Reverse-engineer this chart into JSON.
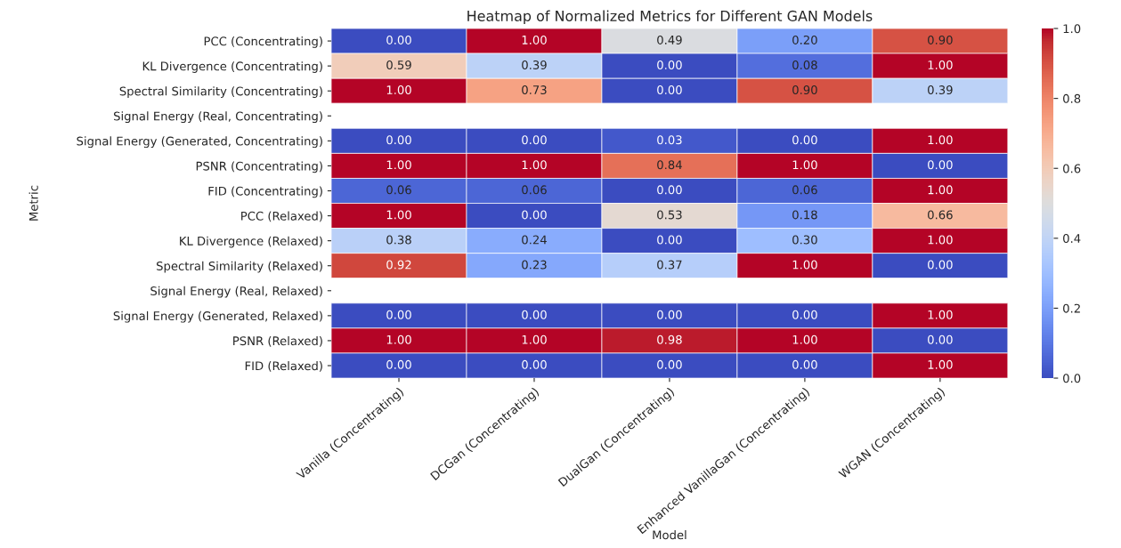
{
  "chart_data": {
    "type": "heatmap",
    "title": "Heatmap of Normalized Metrics for Different GAN Models",
    "xlabel": "Model",
    "ylabel": "Metric",
    "categories": [
      "Vanilla (Concentrating)",
      "DCGan (Concentrating)",
      "DualGan (Concentrating)",
      "Enhanced VanillaGan (Concentrating)",
      "WGAN (Concentrating)"
    ],
    "y_categories": [
      "PCC (Concentrating)",
      "KL Divergence (Concentrating)",
      "Spectral Similarity (Concentrating)",
      "Signal Energy (Real, Concentrating)",
      "Signal Energy (Generated, Concentrating)",
      "PSNR (Concentrating)",
      "FID (Concentrating)",
      "PCC (Relaxed)",
      "KL Divergence (Relaxed)",
      "Spectral Similarity (Relaxed)",
      "Signal Energy (Real, Relaxed)",
      "Signal Energy (Generated, Relaxed)",
      "PSNR (Relaxed)",
      "FID (Relaxed)"
    ],
    "cells": [
      [
        0.0,
        1.0,
        0.49,
        0.2,
        0.9
      ],
      [
        0.59,
        0.39,
        0.0,
        0.08,
        1.0
      ],
      [
        1.0,
        0.73,
        0.0,
        0.9,
        0.39
      ],
      [
        null,
        null,
        null,
        null,
        null
      ],
      [
        0.0,
        0.0,
        0.03,
        0.0,
        1.0
      ],
      [
        1.0,
        1.0,
        0.84,
        1.0,
        0.0
      ],
      [
        0.06,
        0.06,
        0.0,
        0.06,
        1.0
      ],
      [
        1.0,
        0.0,
        0.53,
        0.18,
        0.66
      ],
      [
        0.38,
        0.24,
        0.0,
        0.3,
        1.0
      ],
      [
        0.92,
        0.23,
        0.37,
        1.0,
        0.0
      ],
      [
        null,
        null,
        null,
        null,
        null
      ],
      [
        0.0,
        0.0,
        0.0,
        0.0,
        1.0
      ],
      [
        1.0,
        1.0,
        0.98,
        1.0,
        0.0
      ],
      [
        0.0,
        0.0,
        0.0,
        0.0,
        1.0
      ]
    ],
    "cell_labels": [
      [
        "0.00",
        "1.00",
        "0.49",
        "0.20",
        "0.90"
      ],
      [
        "0.59",
        "0.39",
        "0.00",
        "0.08",
        "1.00"
      ],
      [
        "1.00",
        "0.73",
        "0.00",
        "0.90",
        "0.39"
      ],
      [
        null,
        null,
        null,
        null,
        null
      ],
      [
        "0.00",
        "0.00",
        "0.03",
        "0.00",
        "1.00"
      ],
      [
        "1.00",
        "1.00",
        "0.84",
        "1.00",
        "0.00"
      ],
      [
        "0.06",
        "0.06",
        "0.00",
        "0.06",
        "1.00"
      ],
      [
        "1.00",
        "0.00",
        "0.53",
        "0.18",
        "0.66"
      ],
      [
        "0.38",
        "0.24",
        "0.00",
        "0.30",
        "1.00"
      ],
      [
        "0.92",
        "0.23",
        "0.37",
        "1.00",
        "0.00"
      ],
      [
        null,
        null,
        null,
        null,
        null
      ],
      [
        "0.00",
        "0.00",
        "0.00",
        "0.00",
        "1.00"
      ],
      [
        "1.00",
        "1.00",
        "0.98",
        "1.00",
        "0.00"
      ],
      [
        "0.00",
        "0.00",
        "0.00",
        "0.00",
        "1.00"
      ]
    ],
    "clim": [
      0,
      1
    ],
    "cticks": [
      {
        "value": 0,
        "label": "0.0"
      },
      0.2,
      0.4,
      0.6,
      0.8,
      {
        "value": 1,
        "label": "1.0"
      }
    ]
  }
}
